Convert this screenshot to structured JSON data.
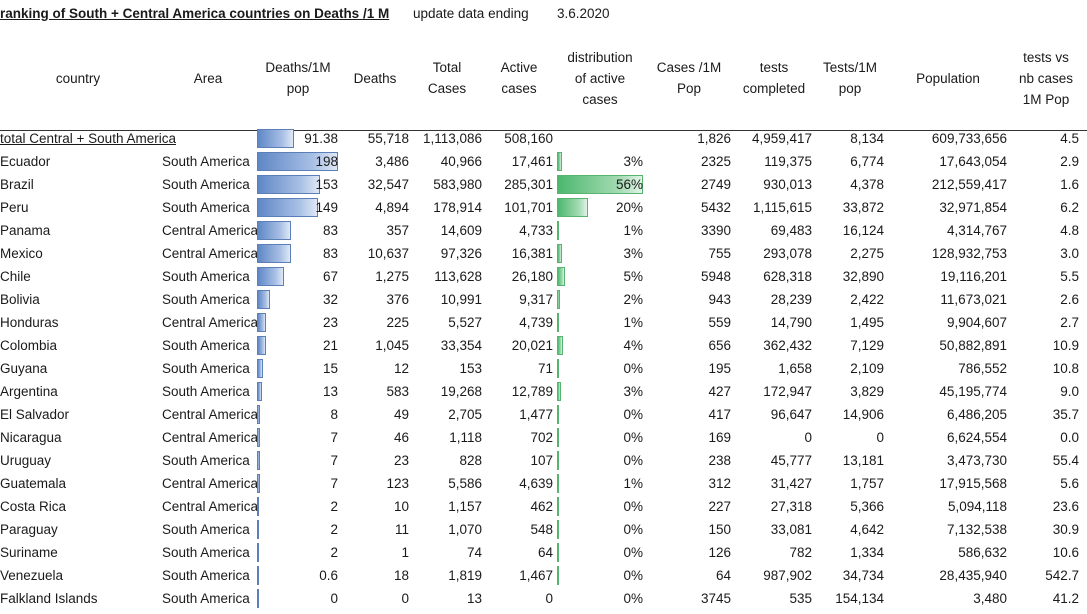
{
  "title": "ranking of South + Central America countries on Deaths /1 M",
  "update_label": "update data ending",
  "update_date": "3.6.2020",
  "headers": {
    "country": "country",
    "area": "Area",
    "deaths_1m": [
      "Deaths/1M",
      "pop"
    ],
    "deaths": "Deaths",
    "total_cases": [
      "Total",
      "Cases"
    ],
    "active_cases": [
      "Active",
      "cases"
    ],
    "distribution": [
      "distribution",
      "of active",
      "cases"
    ],
    "cases_1m": [
      "Cases /1M",
      "Pop"
    ],
    "tests": [
      "tests",
      "completed"
    ],
    "tests_1m": [
      "Tests/1M",
      "pop"
    ],
    "population": "Population",
    "tests_vs": [
      "tests vs",
      "nb cases",
      "1M Pop"
    ]
  },
  "colors": {
    "deaths_bar": "#5f87c6",
    "active_bar": "#4cb86e"
  },
  "total": {
    "country": "total Central + South America",
    "deaths_1m": "91.38",
    "deaths": "55,718",
    "total_cases": "1,113,086",
    "active": "508,160",
    "dist": "",
    "cases_1m": "1,826",
    "tests": "4,959,417",
    "tests_1m": "8,134",
    "population": "609,733,656",
    "tests_vs": "4.5",
    "deaths_1m_value": 91.38
  },
  "rows": [
    {
      "country": "Ecuador",
      "area": "South America",
      "deaths_1m": "198",
      "deaths": "3,486",
      "total_cases": "40,966",
      "active": "17,461",
      "dist": "3%",
      "cases_1m": "2325",
      "tests": "119,375",
      "tests_1m": "6,774",
      "population": "17,643,054",
      "tests_vs": "2.9",
      "deaths_1m_value": 198,
      "active_value": 17461
    },
    {
      "country": "Brazil",
      "area": "South America",
      "deaths_1m": "153",
      "deaths": "32,547",
      "total_cases": "583,980",
      "active": "285,301",
      "dist": "56%",
      "cases_1m": "2749",
      "tests": "930,013",
      "tests_1m": "4,378",
      "population": "212,559,417",
      "tests_vs": "1.6",
      "deaths_1m_value": 153,
      "active_value": 285301
    },
    {
      "country": "Peru",
      "area": "South America",
      "deaths_1m": "149",
      "deaths": "4,894",
      "total_cases": "178,914",
      "active": "101,701",
      "dist": "20%",
      "cases_1m": "5432",
      "tests": "1,115,615",
      "tests_1m": "33,872",
      "population": "32,971,854",
      "tests_vs": "6.2",
      "deaths_1m_value": 149,
      "active_value": 101701
    },
    {
      "country": "Panama",
      "area": "Central America",
      "deaths_1m": "83",
      "deaths": "357",
      "total_cases": "14,609",
      "active": "4,733",
      "dist": "1%",
      "cases_1m": "3390",
      "tests": "69,483",
      "tests_1m": "16,124",
      "population": "4,314,767",
      "tests_vs": "4.8",
      "deaths_1m_value": 83,
      "active_value": 4733
    },
    {
      "country": "Mexico",
      "area": "Central America",
      "deaths_1m": "83",
      "deaths": "10,637",
      "total_cases": "97,326",
      "active": "16,381",
      "dist": "3%",
      "cases_1m": "755",
      "tests": "293,078",
      "tests_1m": "2,275",
      "population": "128,932,753",
      "tests_vs": "3.0",
      "deaths_1m_value": 83,
      "active_value": 16381
    },
    {
      "country": "Chile",
      "area": "South America",
      "deaths_1m": "67",
      "deaths": "1,275",
      "total_cases": "113,628",
      "active": "26,180",
      "dist": "5%",
      "cases_1m": "5948",
      "tests": "628,318",
      "tests_1m": "32,890",
      "population": "19,116,201",
      "tests_vs": "5.5",
      "deaths_1m_value": 67,
      "active_value": 26180
    },
    {
      "country": "Bolivia",
      "area": "South America",
      "deaths_1m": "32",
      "deaths": "376",
      "total_cases": "10,991",
      "active": "9,317",
      "dist": "2%",
      "cases_1m": "943",
      "tests": "28,239",
      "tests_1m": "2,422",
      "population": "11,673,021",
      "tests_vs": "2.6",
      "deaths_1m_value": 32,
      "active_value": 9317
    },
    {
      "country": "Honduras",
      "area": "Central America",
      "deaths_1m": "23",
      "deaths": "225",
      "total_cases": "5,527",
      "active": "4,739",
      "dist": "1%",
      "cases_1m": "559",
      "tests": "14,790",
      "tests_1m": "1,495",
      "population": "9,904,607",
      "tests_vs": "2.7",
      "deaths_1m_value": 23,
      "active_value": 4739
    },
    {
      "country": "Colombia",
      "area": "South America",
      "deaths_1m": "21",
      "deaths": "1,045",
      "total_cases": "33,354",
      "active": "20,021",
      "dist": "4%",
      "cases_1m": "656",
      "tests": "362,432",
      "tests_1m": "7,129",
      "population": "50,882,891",
      "tests_vs": "10.9",
      "deaths_1m_value": 21,
      "active_value": 20021
    },
    {
      "country": "Guyana",
      "area": "South America",
      "deaths_1m": "15",
      "deaths": "12",
      "total_cases": "153",
      "active": "71",
      "dist": "0%",
      "cases_1m": "195",
      "tests": "1,658",
      "tests_1m": "2,109",
      "population": "786,552",
      "tests_vs": "10.8",
      "deaths_1m_value": 15,
      "active_value": 71
    },
    {
      "country": "Argentina",
      "area": "South America",
      "deaths_1m": "13",
      "deaths": "583",
      "total_cases": "19,268",
      "active": "12,789",
      "dist": "3%",
      "cases_1m": "427",
      "tests": "172,947",
      "tests_1m": "3,829",
      "population": "45,195,774",
      "tests_vs": "9.0",
      "deaths_1m_value": 13,
      "active_value": 12789
    },
    {
      "country": "El Salvador",
      "area": "Central America",
      "deaths_1m": "8",
      "deaths": "49",
      "total_cases": "2,705",
      "active": "1,477",
      "dist": "0%",
      "cases_1m": "417",
      "tests": "96,647",
      "tests_1m": "14,906",
      "population": "6,486,205",
      "tests_vs": "35.7",
      "deaths_1m_value": 8,
      "active_value": 1477
    },
    {
      "country": "Nicaragua",
      "area": "Central America",
      "deaths_1m": "7",
      "deaths": "46",
      "total_cases": "1,118",
      "active": "702",
      "dist": "0%",
      "cases_1m": "169",
      "tests": "0",
      "tests_1m": "0",
      "population": "6,624,554",
      "tests_vs": "0.0",
      "deaths_1m_value": 7,
      "active_value": 702
    },
    {
      "country": "Uruguay",
      "area": "South America",
      "deaths_1m": "7",
      "deaths": "23",
      "total_cases": "828",
      "active": "107",
      "dist": "0%",
      "cases_1m": "238",
      "tests": "45,777",
      "tests_1m": "13,181",
      "population": "3,473,730",
      "tests_vs": "55.4",
      "deaths_1m_value": 7,
      "active_value": 107
    },
    {
      "country": "Guatemala",
      "area": "Central America",
      "deaths_1m": "7",
      "deaths": "123",
      "total_cases": "5,586",
      "active": "4,639",
      "dist": "1%",
      "cases_1m": "312",
      "tests": "31,427",
      "tests_1m": "1,757",
      "population": "17,915,568",
      "tests_vs": "5.6",
      "deaths_1m_value": 7,
      "active_value": 4639
    },
    {
      "country": "Costa Rica",
      "area": "Central America",
      "deaths_1m": "2",
      "deaths": "10",
      "total_cases": "1,157",
      "active": "462",
      "dist": "0%",
      "cases_1m": "227",
      "tests": "27,318",
      "tests_1m": "5,366",
      "population": "5,094,118",
      "tests_vs": "23.6",
      "deaths_1m_value": 2,
      "active_value": 462
    },
    {
      "country": "Paraguay",
      "area": "South America",
      "deaths_1m": "2",
      "deaths": "11",
      "total_cases": "1,070",
      "active": "548",
      "dist": "0%",
      "cases_1m": "150",
      "tests": "33,081",
      "tests_1m": "4,642",
      "population": "7,132,538",
      "tests_vs": "30.9",
      "deaths_1m_value": 2,
      "active_value": 548
    },
    {
      "country": "Suriname",
      "area": "South America",
      "deaths_1m": "2",
      "deaths": "1",
      "total_cases": "74",
      "active": "64",
      "dist": "0%",
      "cases_1m": "126",
      "tests": "782",
      "tests_1m": "1,334",
      "population": "586,632",
      "tests_vs": "10.6",
      "deaths_1m_value": 2,
      "active_value": 64
    },
    {
      "country": "Venezuela",
      "area": "South America",
      "deaths_1m": "0.6",
      "deaths": "18",
      "total_cases": "1,819",
      "active": "1,467",
      "dist": "0%",
      "cases_1m": "64",
      "tests": "987,902",
      "tests_1m": "34,734",
      "population": "28,435,940",
      "tests_vs": "542.7",
      "deaths_1m_value": 0.6,
      "active_value": 1467
    },
    {
      "country": "Falkland Islands",
      "area": "South America",
      "deaths_1m": "0",
      "deaths": "0",
      "total_cases": "13",
      "active": "0",
      "dist": "0%",
      "cases_1m": "3745",
      "tests": "535",
      "tests_1m": "154,134",
      "population": "3,480",
      "tests_vs": "41.2",
      "deaths_1m_value": 0,
      "active_value": 0
    }
  ]
}
